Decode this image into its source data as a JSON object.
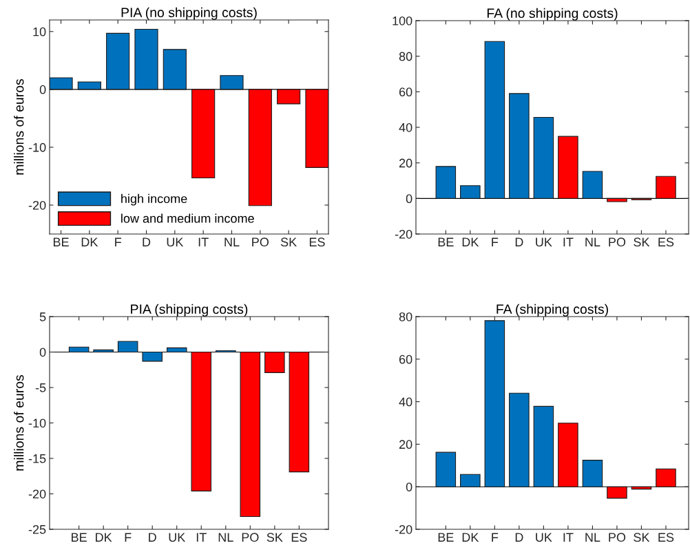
{
  "chart_data": [
    {
      "type": "bar",
      "title": "PIA (no shipping costs)",
      "ylabel": "millions of euros",
      "categories": [
        "BE",
        "DK",
        "F",
        "D",
        "UK",
        "IT",
        "NL",
        "PO",
        "SK",
        "ES"
      ],
      "stacked": true,
      "ylim": [
        -25,
        12
      ],
      "yticks": [
        -20,
        -10,
        0,
        10
      ],
      "grid": false,
      "ref_lines": [
        {
          "axis": "y",
          "value": 0,
          "color": "#000000"
        }
      ],
      "legend": "bottom left",
      "series": [
        {
          "name": "high income",
          "color": "#0072bd",
          "values": [
            2.0,
            1.3,
            9.7,
            10.4,
            6.9,
            null,
            2.4,
            null,
            null,
            null
          ]
        },
        {
          "name": "low and medium income",
          "color": "#ff0000",
          "values": [
            null,
            null,
            null,
            null,
            null,
            -15.3,
            null,
            -20.1,
            -2.5,
            -13.5
          ]
        }
      ]
    },
    {
      "type": "bar",
      "title": "FA (no shipping costs)",
      "categories": [
        "BE",
        "DK",
        "F",
        "D",
        "UK",
        "IT",
        "NL",
        "PO",
        "SK",
        "ES"
      ],
      "stacked": true,
      "ylim": [
        -20,
        100
      ],
      "yticks": [
        -20,
        0,
        20,
        40,
        60,
        80,
        100
      ],
      "grid": false,
      "ref_lines": [
        {
          "axis": "y",
          "value": 0,
          "color": "#000000"
        }
      ],
      "series": [
        {
          "color": "#0072bd",
          "values": [
            18.0,
            7.2,
            88.3,
            59.0,
            45.6,
            null,
            15.2,
            null,
            null,
            null
          ]
        },
        {
          "color": "#ff0000",
          "values": [
            null,
            null,
            null,
            null,
            null,
            34.9,
            null,
            -1.8,
            -0.7,
            12.4
          ]
        }
      ]
    },
    {
      "type": "bar",
      "title": "PIA (shipping costs)",
      "ylabel": "millions of euros",
      "categories": [
        "BE",
        "DK",
        "F",
        "D",
        "UK",
        "IT",
        "NL",
        "PO",
        "SK",
        "ES"
      ],
      "stacked": true,
      "ylim": [
        -25,
        5
      ],
      "yticks": [
        -25,
        -20,
        -15,
        -10,
        -5,
        0,
        5
      ],
      "grid": false,
      "ref_lines": [
        {
          "axis": "y",
          "value": 0,
          "color": "#000000"
        }
      ],
      "series": [
        {
          "color": "#0072bd",
          "values": [
            0.7,
            0.3,
            1.5,
            -1.3,
            0.6,
            null,
            0.2,
            null,
            null,
            null
          ]
        },
        {
          "color": "#ff0000",
          "values": [
            null,
            null,
            null,
            null,
            null,
            -19.6,
            null,
            -23.2,
            -2.9,
            -16.9
          ]
        }
      ]
    },
    {
      "type": "bar",
      "title": "FA (shipping costs)",
      "categories": [
        "BE",
        "DK",
        "F",
        "D",
        "UK",
        "IT",
        "NL",
        "PO",
        "SK",
        "ES"
      ],
      "stacked": true,
      "ylim": [
        -20,
        80
      ],
      "yticks": [
        -20,
        0,
        20,
        40,
        60,
        80
      ],
      "grid": false,
      "ref_lines": [
        {
          "axis": "y",
          "value": 0,
          "color": "#000000"
        }
      ],
      "series": [
        {
          "color": "#0072bd",
          "values": [
            16.2,
            5.8,
            78.1,
            44.0,
            37.8,
            null,
            12.5,
            null,
            null,
            null
          ]
        },
        {
          "color": "#ff0000",
          "values": [
            null,
            null,
            null,
            null,
            null,
            29.9,
            null,
            -5.4,
            -1.1,
            8.4
          ]
        }
      ]
    }
  ]
}
